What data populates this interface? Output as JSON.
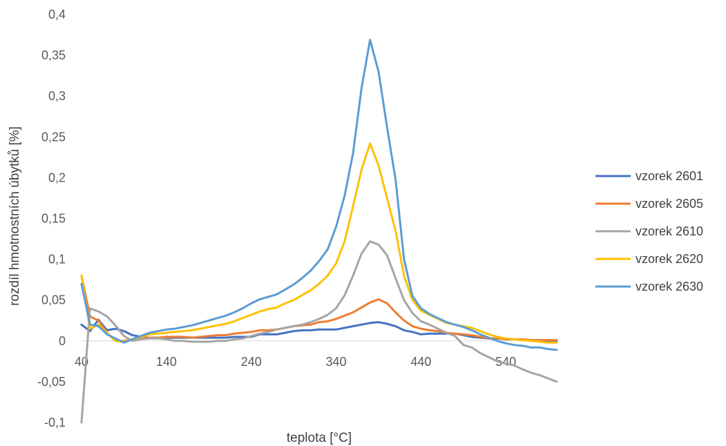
{
  "chart_data": {
    "type": "line",
    "xlabel": "teplota [°C]",
    "ylabel": "rozdíl hmotnostních úbytků [%]",
    "xlim": [
      40,
      600
    ],
    "ylim": [
      -0.1,
      0.4
    ],
    "x_ticks": [
      "40",
      "140",
      "240",
      "340",
      "440",
      "540"
    ],
    "y_ticks": [
      "-0,1",
      "-0,05",
      "0",
      "0,05",
      "0,1",
      "0,15",
      "0,2",
      "0,25",
      "0,3",
      "0,35",
      "0,4"
    ],
    "legend_position": "right",
    "grid": false,
    "x": [
      40,
      50,
      60,
      70,
      80,
      90,
      100,
      110,
      120,
      130,
      140,
      150,
      160,
      170,
      180,
      190,
      200,
      210,
      220,
      230,
      240,
      250,
      260,
      270,
      280,
      290,
      300,
      310,
      320,
      330,
      340,
      350,
      360,
      370,
      380,
      390,
      400,
      410,
      420,
      430,
      440,
      450,
      460,
      470,
      480,
      490,
      500,
      510,
      520,
      530,
      540,
      550,
      560,
      570,
      580,
      590,
      600
    ],
    "series": [
      {
        "name": "vzorek 2601",
        "color": "#4472C4",
        "values": [
          0.02,
          0.012,
          0.026,
          0.013,
          0.015,
          0.012,
          0.007,
          0.005,
          0.004,
          0.004,
          0.004,
          0.004,
          0.004,
          0.004,
          0.004,
          0.004,
          0.004,
          0.004,
          0.005,
          0.005,
          0.005,
          0.008,
          0.008,
          0.008,
          0.01,
          0.012,
          0.013,
          0.013,
          0.014,
          0.014,
          0.014,
          0.016,
          0.018,
          0.02,
          0.022,
          0.023,
          0.021,
          0.018,
          0.013,
          0.011,
          0.008,
          0.009,
          0.009,
          0.009,
          0.009,
          0.007,
          0.005,
          0.004,
          0.003,
          0.003,
          0.002,
          0.002,
          0.001,
          0.001,
          0.001,
          0.0,
          0.0
        ]
      },
      {
        "name": "vzorek 2605",
        "color": "#ED7D31",
        "values": [
          0.08,
          0.03,
          0.025,
          0.01,
          0.0,
          0.0,
          0.002,
          0.004,
          0.004,
          0.004,
          0.005,
          0.005,
          0.005,
          0.004,
          0.005,
          0.006,
          0.007,
          0.007,
          0.009,
          0.01,
          0.011,
          0.013,
          0.013,
          0.014,
          0.016,
          0.018,
          0.019,
          0.02,
          0.023,
          0.024,
          0.027,
          0.031,
          0.035,
          0.041,
          0.047,
          0.051,
          0.046,
          0.035,
          0.025,
          0.018,
          0.015,
          0.013,
          0.012,
          0.01,
          0.009,
          0.008,
          0.007,
          0.005,
          0.003,
          0.003,
          0.002,
          0.002,
          0.002,
          0.001,
          0.001,
          0.001,
          0.001
        ]
      },
      {
        "name": "vzorek 2610",
        "color": "#A5A5A5",
        "values": [
          -0.1,
          0.04,
          0.036,
          0.03,
          0.019,
          0.006,
          0.0,
          0.002,
          0.003,
          0.003,
          0.002,
          0.0,
          0.0,
          -0.001,
          -0.001,
          -0.001,
          0.0,
          0.0,
          0.002,
          0.003,
          0.006,
          0.009,
          0.011,
          0.014,
          0.016,
          0.018,
          0.02,
          0.023,
          0.027,
          0.032,
          0.04,
          0.056,
          0.08,
          0.107,
          0.122,
          0.118,
          0.105,
          0.077,
          0.05,
          0.034,
          0.024,
          0.02,
          0.015,
          0.01,
          0.006,
          -0.005,
          -0.008,
          -0.015,
          -0.02,
          -0.025,
          -0.028,
          -0.03,
          -0.035,
          -0.039,
          -0.042,
          -0.046,
          -0.05
        ]
      },
      {
        "name": "vzorek 2620",
        "color": "#FFC000",
        "values": [
          0.08,
          0.015,
          0.02,
          0.01,
          0.0,
          -0.001,
          0.002,
          0.005,
          0.008,
          0.009,
          0.01,
          0.011,
          0.012,
          0.013,
          0.015,
          0.017,
          0.019,
          0.021,
          0.024,
          0.028,
          0.032,
          0.036,
          0.039,
          0.041,
          0.046,
          0.05,
          0.056,
          0.062,
          0.07,
          0.08,
          0.095,
          0.122,
          0.165,
          0.21,
          0.242,
          0.215,
          0.175,
          0.135,
          0.08,
          0.05,
          0.037,
          0.032,
          0.027,
          0.022,
          0.02,
          0.018,
          0.016,
          0.012,
          0.008,
          0.005,
          0.003,
          0.002,
          0.001,
          0.0,
          -0.001,
          -0.002,
          -0.002
        ]
      },
      {
        "name": "vzorek 2630",
        "color": "#5B9BD5",
        "values": [
          0.07,
          0.02,
          0.018,
          0.008,
          0.003,
          -0.002,
          0.002,
          0.006,
          0.01,
          0.012,
          0.014,
          0.015,
          0.017,
          0.019,
          0.022,
          0.025,
          0.028,
          0.031,
          0.035,
          0.04,
          0.046,
          0.051,
          0.054,
          0.057,
          0.063,
          0.069,
          0.077,
          0.086,
          0.098,
          0.112,
          0.14,
          0.178,
          0.23,
          0.31,
          0.369,
          0.33,
          0.262,
          0.198,
          0.1,
          0.055,
          0.04,
          0.033,
          0.028,
          0.023,
          0.02,
          0.017,
          0.013,
          0.008,
          0.004,
          0.0,
          -0.003,
          -0.005,
          -0.006,
          -0.008,
          -0.008,
          -0.01,
          -0.011
        ]
      }
    ]
  }
}
